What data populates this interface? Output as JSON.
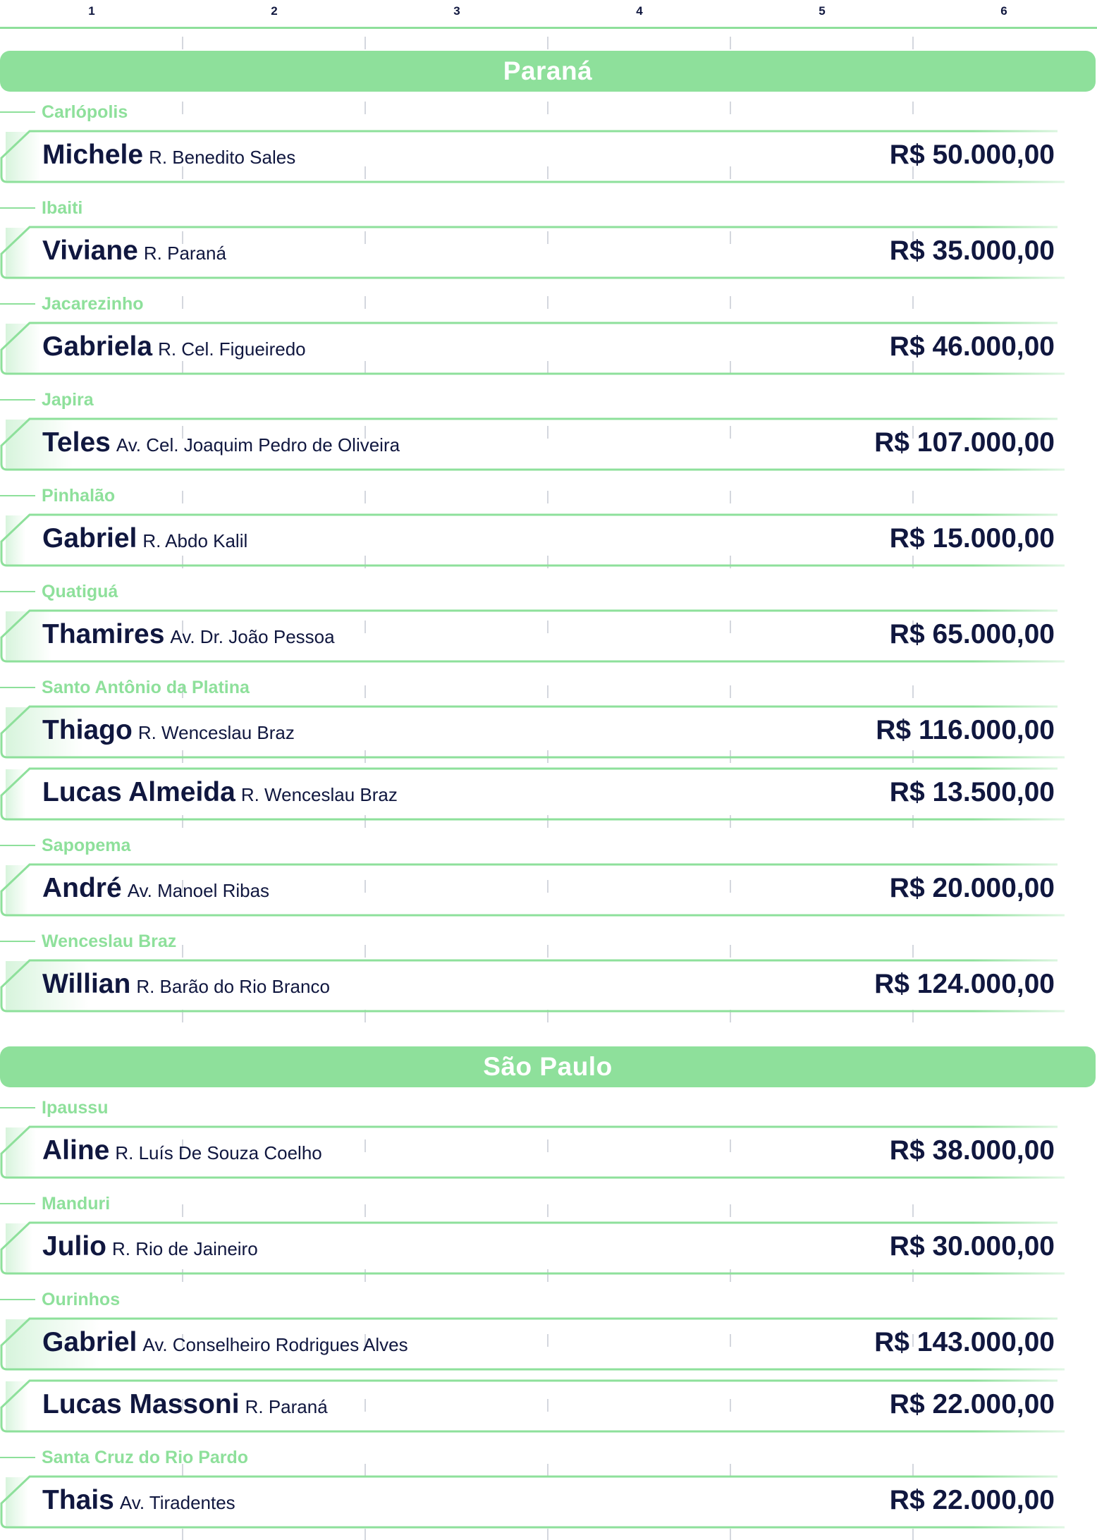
{
  "ruler": {
    "columns": [
      "1",
      "2",
      "3",
      "4",
      "5",
      "6"
    ]
  },
  "colors": {
    "accent": "#8ee09b",
    "text": "#10173f",
    "fill": "#d7f4dc"
  },
  "sections": [
    {
      "state": "Paraná",
      "groups": [
        {
          "city": "Carlópolis",
          "people": [
            {
              "name": "Michele",
              "address": "R. Benedito Sales",
              "value": "R$ 50.000,00",
              "fill_fraction": 0.02
            }
          ]
        },
        {
          "city": "Ibaiti",
          "people": [
            {
              "name": "Viviane",
              "address": "R. Paraná",
              "value": "R$ 35.000,00",
              "fill_fraction": 0.01
            }
          ]
        },
        {
          "city": "Jacarezinho",
          "people": [
            {
              "name": "Gabriela",
              "address": "R. Cel. Figueiredo",
              "value": "R$ 46.000,00",
              "fill_fraction": 0.02
            }
          ]
        },
        {
          "city": "Japira",
          "people": [
            {
              "name": "Teles",
              "address": "Av. Cel. Joaquim Pedro de Oliveira",
              "value": "R$ 107.000,00",
              "fill_fraction": 0.05
            }
          ]
        },
        {
          "city": "Pinhalão",
          "people": [
            {
              "name": "Gabriel",
              "address": "R. Abdo Kalil",
              "value": "R$ 15.000,00",
              "fill_fraction": 0.005
            }
          ]
        },
        {
          "city": "Quatiguá",
          "people": [
            {
              "name": "Thamires",
              "address": "Av. Dr. João Pessoa",
              "value": "R$ 65.000,00",
              "fill_fraction": 0.03
            }
          ]
        },
        {
          "city": "Santo Antônio da Platina",
          "people": [
            {
              "name": "Thiago",
              "address": "R. Wenceslau Braz",
              "value": "R$ 116.000,00",
              "fill_fraction": 0.06
            },
            {
              "name": "Lucas Almeida",
              "address": "R. Wenceslau Braz",
              "value": "R$ 13.500,00",
              "fill_fraction": 0.005
            }
          ]
        },
        {
          "city": "Sapopema",
          "people": [
            {
              "name": "André",
              "address": "Av. Manoel Ribas",
              "value": "R$ 20.000,00",
              "fill_fraction": 0.008
            }
          ]
        },
        {
          "city": "Wenceslau Braz",
          "people": [
            {
              "name": "Willian",
              "address": "R. Barão do Rio Branco",
              "value": "R$ 124.000,00",
              "fill_fraction": 0.065
            }
          ]
        }
      ]
    },
    {
      "state": "São Paulo",
      "groups": [
        {
          "city": "Ipaussu",
          "people": [
            {
              "name": "Aline",
              "address": "R. Luís De Souza Coelho",
              "value": "R$ 38.000,00",
              "fill_fraction": 0.015
            }
          ]
        },
        {
          "city": "Manduri",
          "people": [
            {
              "name": "Julio",
              "address": "R. Rio de Jaineiro",
              "value": "R$ 30.000,00",
              "fill_fraction": 0.012
            }
          ]
        },
        {
          "city": "Ourinhos",
          "people": [
            {
              "name": "Gabriel",
              "address": "Av. Conselheiro Rodrigues Alves",
              "value": "R$ 143.000,00",
              "fill_fraction": 0.075
            },
            {
              "name": "Lucas Massoni",
              "address": "R. Paraná",
              "value": "R$ 22.000,00",
              "fill_fraction": 0.008
            }
          ]
        },
        {
          "city": "Santa Cruz do Rio Pardo",
          "people": [
            {
              "name": "Thais",
              "address": "Av. Tiradentes",
              "value": "R$ 22.000,00",
              "fill_fraction": 0.008
            }
          ]
        }
      ]
    }
  ]
}
